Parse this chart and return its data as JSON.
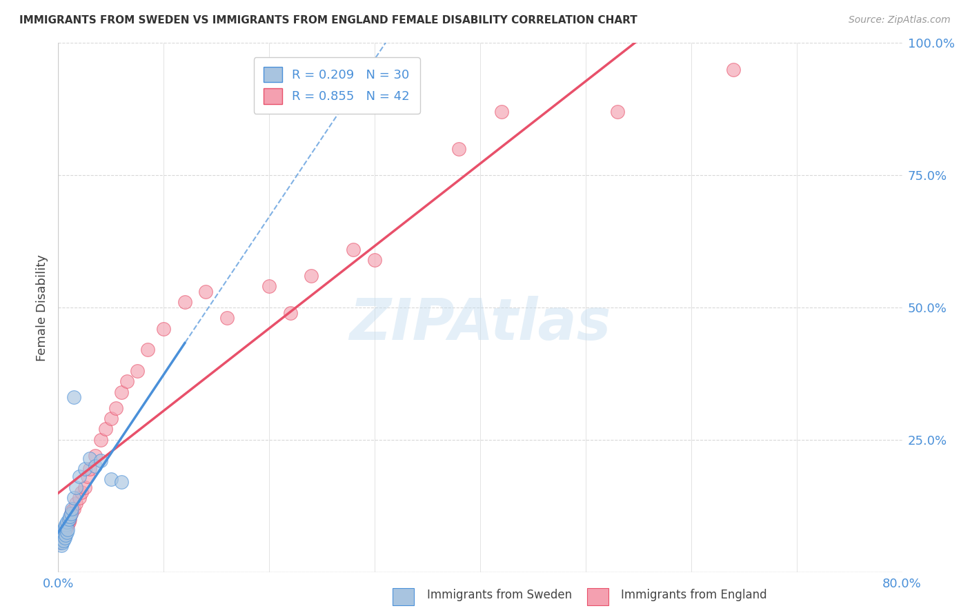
{
  "title": "IMMIGRANTS FROM SWEDEN VS IMMIGRANTS FROM ENGLAND FEMALE DISABILITY CORRELATION CHART",
  "source": "Source: ZipAtlas.com",
  "ylabel": "Female Disability",
  "xlim": [
    0.0,
    0.8
  ],
  "ylim": [
    0.0,
    1.0
  ],
  "xticks": [
    0.0,
    0.1,
    0.2,
    0.3,
    0.4,
    0.5,
    0.6,
    0.7,
    0.8
  ],
  "xticklabels": [
    "0.0%",
    "",
    "",
    "",
    "",
    "",
    "",
    "",
    "80.0%"
  ],
  "yticks": [
    0.0,
    0.25,
    0.5,
    0.75,
    1.0
  ],
  "yticklabels": [
    "",
    "25.0%",
    "50.0%",
    "75.0%",
    "100.0%"
  ],
  "sweden_R": 0.209,
  "sweden_N": 30,
  "england_R": 0.855,
  "england_N": 42,
  "sweden_color": "#a8c4e0",
  "england_color": "#f4a0b0",
  "sweden_line_color": "#4a90d9",
  "england_line_color": "#e8506a",
  "watermark": "ZIPAtlas",
  "legend_sweden": "Immigrants from Sweden",
  "legend_england": "Immigrants from England",
  "sweden_points_x": [
    0.001,
    0.002,
    0.002,
    0.003,
    0.003,
    0.004,
    0.004,
    0.005,
    0.005,
    0.006,
    0.006,
    0.007,
    0.007,
    0.008,
    0.008,
    0.009,
    0.01,
    0.011,
    0.012,
    0.013,
    0.015,
    0.017,
    0.02,
    0.025,
    0.03,
    0.035,
    0.04,
    0.05,
    0.06,
    0.015
  ],
  "sweden_points_y": [
    0.055,
    0.06,
    0.065,
    0.05,
    0.07,
    0.055,
    0.075,
    0.06,
    0.08,
    0.065,
    0.085,
    0.07,
    0.09,
    0.075,
    0.095,
    0.08,
    0.1,
    0.105,
    0.11,
    0.12,
    0.14,
    0.16,
    0.18,
    0.195,
    0.215,
    0.2,
    0.21,
    0.175,
    0.17,
    0.33
  ],
  "england_points_x": [
    0.001,
    0.002,
    0.003,
    0.004,
    0.005,
    0.006,
    0.007,
    0.008,
    0.009,
    0.01,
    0.011,
    0.012,
    0.013,
    0.015,
    0.017,
    0.02,
    0.022,
    0.025,
    0.028,
    0.03,
    0.035,
    0.04,
    0.045,
    0.05,
    0.055,
    0.06,
    0.065,
    0.075,
    0.085,
    0.1,
    0.12,
    0.14,
    0.16,
    0.2,
    0.22,
    0.24,
    0.28,
    0.3,
    0.38,
    0.42,
    0.53,
    0.64
  ],
  "england_points_y": [
    0.055,
    0.06,
    0.065,
    0.07,
    0.075,
    0.075,
    0.08,
    0.085,
    0.09,
    0.095,
    0.1,
    0.11,
    0.115,
    0.12,
    0.13,
    0.14,
    0.15,
    0.16,
    0.18,
    0.195,
    0.22,
    0.25,
    0.27,
    0.29,
    0.31,
    0.34,
    0.36,
    0.38,
    0.42,
    0.46,
    0.51,
    0.53,
    0.48,
    0.54,
    0.49,
    0.56,
    0.61,
    0.59,
    0.8,
    0.87,
    0.87,
    0.95
  ],
  "background_color": "#ffffff",
  "grid_color": "#d8d8d8"
}
